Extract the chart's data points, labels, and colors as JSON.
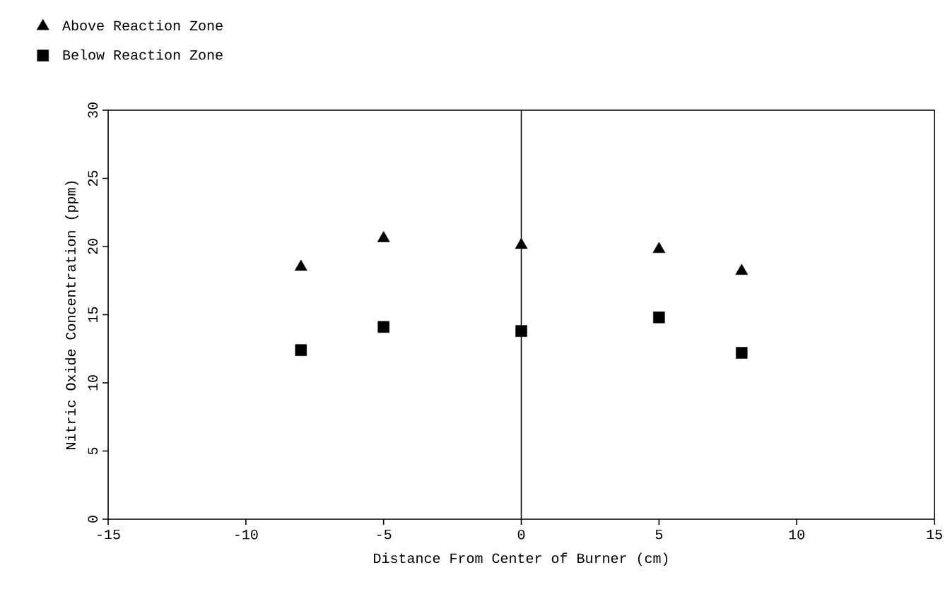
{
  "chart_data": {
    "type": "scatter",
    "xlabel": "Distance From Center of Burner (cm)",
    "ylabel": "Nitric Oxide Concentration (ppm)",
    "xlim": [
      -15,
      15
    ],
    "xticks": [
      -15,
      -10,
      -5,
      0,
      5,
      10,
      15
    ],
    "ylim": [
      0,
      30
    ],
    "yticks": [
      0,
      5,
      10,
      15,
      20,
      25,
      30
    ],
    "grid": false,
    "legend": "top left",
    "ref_lines": [
      {
        "axis": "x",
        "value": 0
      }
    ],
    "series": [
      {
        "name": "Above Reaction Zone",
        "color": "#000000",
        "marker": "triangle",
        "x": [
          -8,
          -5,
          0,
          5,
          8
        ],
        "values": [
          18.5,
          20.6,
          20.1,
          19.8,
          18.2
        ]
      },
      {
        "name": "Below Reaction Zone",
        "color": "#000000",
        "marker": "square",
        "x": [
          -8,
          -5,
          0,
          5,
          8
        ],
        "values": [
          12.4,
          14.1,
          13.8,
          14.8,
          12.2
        ]
      }
    ]
  }
}
